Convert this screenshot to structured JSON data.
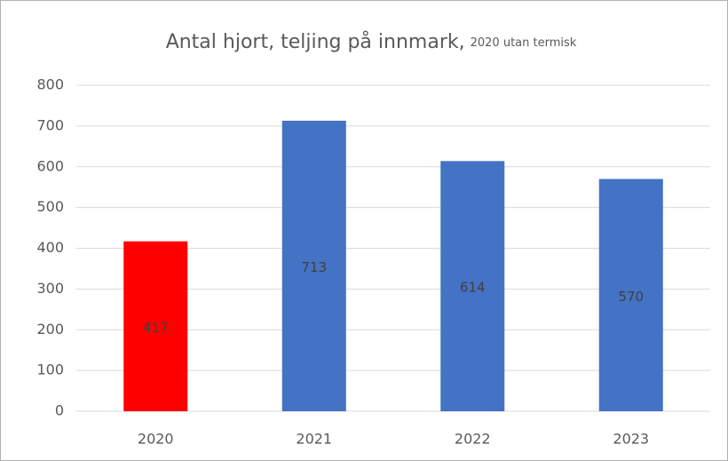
{
  "chart_data": {
    "type": "bar",
    "title": "Antal hjort, teljing på innmark,",
    "subtitle": "2020 utan termisk",
    "categories": [
      "2020",
      "2021",
      "2022",
      "2023"
    ],
    "values": [
      417,
      713,
      614,
      570
    ],
    "colors": [
      "#ff0000",
      "#4472c4",
      "#4472c4",
      "#4472c4"
    ],
    "ylim": [
      0,
      800
    ],
    "yticks": [
      0,
      100,
      200,
      300,
      400,
      500,
      600,
      700,
      800
    ],
    "grid": true,
    "data_labels": true
  }
}
